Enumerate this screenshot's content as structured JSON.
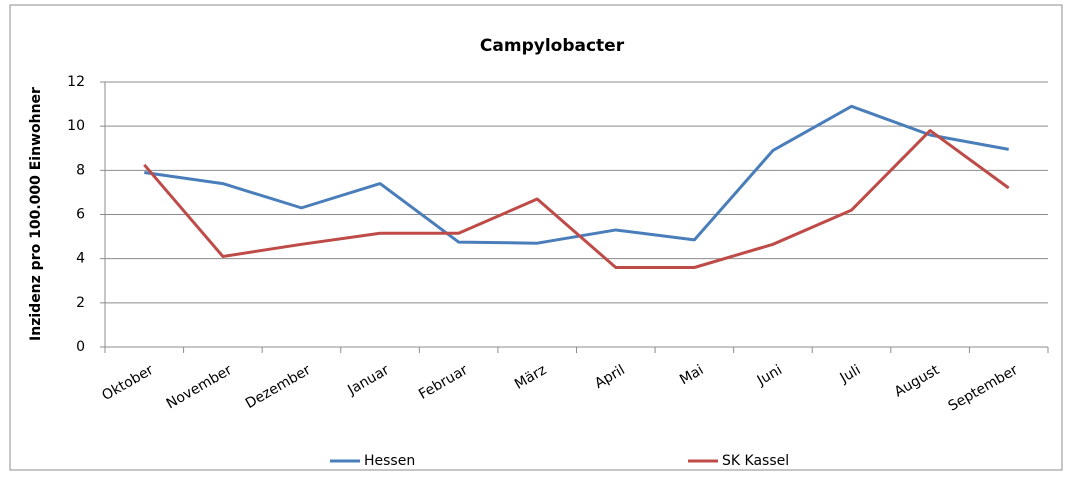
{
  "chart_data": {
    "type": "line",
    "title": "Campylobacter",
    "y_label": "Inzidenz pro 100.000 Einwohner",
    "categories": [
      "Oktober",
      "November",
      "Dezember",
      "Januar",
      "Februar",
      "März",
      "April",
      "Mai",
      "Juni",
      "Juli",
      "August",
      "September"
    ],
    "series": [
      {
        "name": "Hessen",
        "color": "#4a7ebb",
        "values": [
          7.9,
          7.4,
          6.3,
          7.4,
          4.75,
          4.7,
          5.3,
          4.85,
          8.9,
          10.9,
          9.6,
          8.95
        ]
      },
      {
        "name": "SK Kassel",
        "color": "#be4b48",
        "values": [
          8.25,
          4.1,
          4.65,
          5.15,
          5.15,
          6.7,
          3.6,
          3.6,
          4.65,
          6.2,
          9.8,
          7.2
        ]
      }
    ],
    "ylim": [
      0,
      12
    ],
    "yticks": [
      0,
      2,
      4,
      6,
      8,
      10,
      12
    ],
    "grid": true,
    "legend": "bottom"
  }
}
